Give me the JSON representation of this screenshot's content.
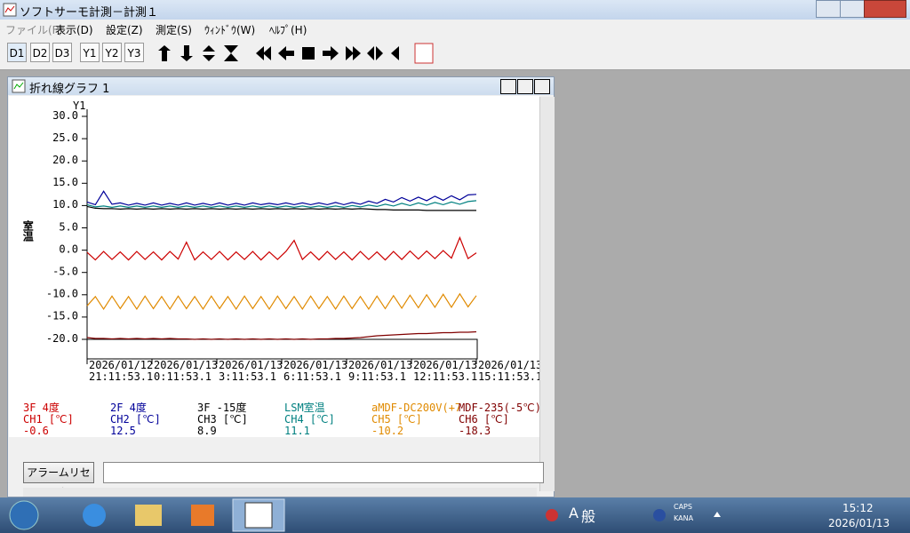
{
  "window": {
    "title": "ソフトサーモ計測－計測１"
  },
  "menu": [
    "ファイル(F)",
    "表示(D)",
    "設定(Z)",
    "測定(S)",
    "ｳｨﾝﾄﾞｳ(W)",
    "ﾍﾙﾌﾟ(H)"
  ],
  "toolbar": [
    "D1",
    "D2",
    "D3",
    "Y1",
    "Y2",
    "Y3"
  ],
  "child_window": {
    "title": "折れ線グラフ 1"
  },
  "chart_data": {
    "type": "line",
    "y_axis_name": "Y1",
    "ylabel": "室温",
    "ylim": [
      -20,
      30
    ],
    "yticks": [
      {
        "value": 30,
        "label": "30.0"
      },
      {
        "value": 25,
        "label": "25.0"
      },
      {
        "value": 20,
        "label": "20.0"
      },
      {
        "value": 15,
        "label": "15.0"
      },
      {
        "value": 10,
        "label": "10.0"
      },
      {
        "value": 5,
        "label": "5.0"
      },
      {
        "value": 0,
        "label": "0.0"
      },
      {
        "value": -5,
        "label": "-5.0"
      },
      {
        "value": -10,
        "label": "-10.0"
      },
      {
        "value": -15,
        "label": "-15.0"
      },
      {
        "value": -20,
        "label": "-20.0"
      }
    ],
    "x_tick_labels": [
      [
        "2026/01/12",
        "21:11:53.1"
      ],
      [
        "2026/01/13",
        "0:11:53.1"
      ],
      [
        "2026/01/13",
        "3:11:53.1"
      ],
      [
        "2026/01/13",
        "6:11:53.1"
      ],
      [
        "2026/01/13",
        "9:11:53.1"
      ],
      [
        "2026/01/13",
        "12:11:53.1"
      ],
      [
        "2026/01/13",
        "15:11:53.1"
      ]
    ],
    "series": [
      {
        "name": "3F 4度",
        "channel": "CH1 [℃]",
        "current": -0.6,
        "color": "#cc0000",
        "values": [
          -0.5,
          -2.2,
          -0.3,
          -2.1,
          -0.4,
          -2.2,
          -0.3,
          -2.1,
          -0.4,
          -2.2,
          -0.3,
          -2.0,
          1.8,
          -2.2,
          -0.4,
          -2.1,
          -0.3,
          -2.2,
          -0.4,
          -2.1,
          -0.3,
          -2.2,
          -0.4,
          -2.1,
          -0.3,
          2.2,
          -2.1,
          -0.4,
          -2.2,
          -0.3,
          -2.1,
          -0.4,
          -2.2,
          -0.3,
          -2.1,
          -0.4,
          -2.2,
          -0.3,
          -2.1,
          -0.2,
          -2.0,
          -0.2,
          -1.9,
          -0.1,
          -1.8,
          2.8,
          -1.9,
          -0.6
        ]
      },
      {
        "name": "2F 4度",
        "channel": "CH2 [℃]",
        "current": 12.5,
        "color": "#000099",
        "values": [
          10.8,
          10.2,
          13.2,
          10.3,
          10.6,
          10.1,
          10.5,
          10.1,
          10.6,
          10.1,
          10.5,
          10.1,
          10.6,
          10.1,
          10.5,
          10.1,
          10.6,
          10.1,
          10.5,
          10.1,
          10.6,
          10.2,
          10.5,
          10.2,
          10.6,
          10.2,
          10.6,
          10.2,
          10.6,
          10.2,
          10.7,
          10.2,
          10.7,
          10.3,
          11.0,
          10.5,
          11.4,
          10.8,
          11.8,
          11.0,
          11.9,
          11.1,
          12.1,
          11.2,
          12.2,
          11.3,
          12.4,
          12.5
        ]
      },
      {
        "name": "3F -15度",
        "channel": "CH3 [℃]",
        "current": 8.9,
        "color": "#000000",
        "values": [
          9.8,
          9.4,
          9.3,
          9.3,
          9.2,
          9.3,
          9.2,
          9.3,
          9.2,
          9.3,
          9.2,
          9.3,
          9.2,
          9.3,
          9.2,
          9.3,
          9.2,
          9.3,
          9.2,
          9.3,
          9.2,
          9.3,
          9.2,
          9.3,
          9.2,
          9.3,
          9.2,
          9.3,
          9.2,
          9.3,
          9.2,
          9.3,
          9.2,
          9.3,
          9.2,
          9.1,
          9.1,
          9.0,
          9.0,
          9.0,
          9.0,
          8.9,
          8.9,
          8.9,
          8.9,
          8.9,
          8.9,
          8.9
        ]
      },
      {
        "name": "LSM室温",
        "channel": "CH4 [℃]",
        "current": 11.1,
        "color": "#008080",
        "values": [
          10.2,
          9.7,
          9.9,
          9.6,
          9.9,
          9.6,
          9.9,
          9.6,
          9.9,
          9.6,
          9.9,
          9.6,
          9.9,
          9.6,
          9.9,
          9.6,
          9.9,
          9.6,
          9.9,
          9.6,
          9.9,
          9.6,
          9.9,
          9.6,
          9.9,
          9.6,
          9.9,
          9.6,
          9.9,
          9.6,
          9.9,
          9.6,
          10.0,
          9.7,
          10.1,
          9.8,
          10.3,
          9.9,
          10.5,
          10.0,
          10.6,
          10.1,
          10.7,
          10.2,
          10.8,
          10.3,
          10.9,
          11.1
        ]
      },
      {
        "name": "aMDF-DC200V(+7",
        "channel": "CH5 [℃]",
        "current": -10.2,
        "color": "#e08a00",
        "values": [
          -12.5,
          -10.4,
          -13.2,
          -10.3,
          -13.1,
          -10.4,
          -13.2,
          -10.3,
          -13.1,
          -10.4,
          -13.2,
          -10.3,
          -13.1,
          -10.4,
          -13.2,
          -10.3,
          -13.1,
          -10.4,
          -13.2,
          -10.3,
          -13.1,
          -10.4,
          -13.2,
          -10.3,
          -13.1,
          -10.4,
          -13.2,
          -10.3,
          -13.1,
          -10.4,
          -13.2,
          -10.3,
          -13.1,
          -10.4,
          -13.2,
          -10.3,
          -13.1,
          -10.2,
          -13.0,
          -10.1,
          -12.9,
          -10.0,
          -12.8,
          -9.9,
          -12.8,
          -9.8,
          -12.7,
          -10.2
        ]
      },
      {
        "name": "MDF-235(-5℃)",
        "channel": "CH6 [℃]",
        "current": -18.3,
        "color": "#800000",
        "values": [
          -19.6,
          -19.8,
          -19.8,
          -19.9,
          -19.8,
          -19.9,
          -19.8,
          -19.9,
          -19.8,
          -19.9,
          -19.8,
          -19.9,
          -19.9,
          -20.0,
          -19.9,
          -20.0,
          -19.9,
          -20.0,
          -19.9,
          -20.0,
          -19.9,
          -20.0,
          -19.9,
          -20.0,
          -19.9,
          -20.0,
          -19.9,
          -20.0,
          -19.9,
          -19.9,
          -19.8,
          -19.8,
          -19.7,
          -19.6,
          -19.4,
          -19.2,
          -19.1,
          -19.0,
          -18.9,
          -18.8,
          -18.7,
          -18.7,
          -18.6,
          -18.5,
          -18.5,
          -18.4,
          -18.4,
          -18.3
        ]
      }
    ]
  },
  "alarm_button": "アラームリセット",
  "taskbar": {
    "ime_mode": "A",
    "ime_kanji": "般",
    "caps": "CAPS",
    "kana": "KANA",
    "time": "15:12",
    "date": "2026/01/13"
  }
}
